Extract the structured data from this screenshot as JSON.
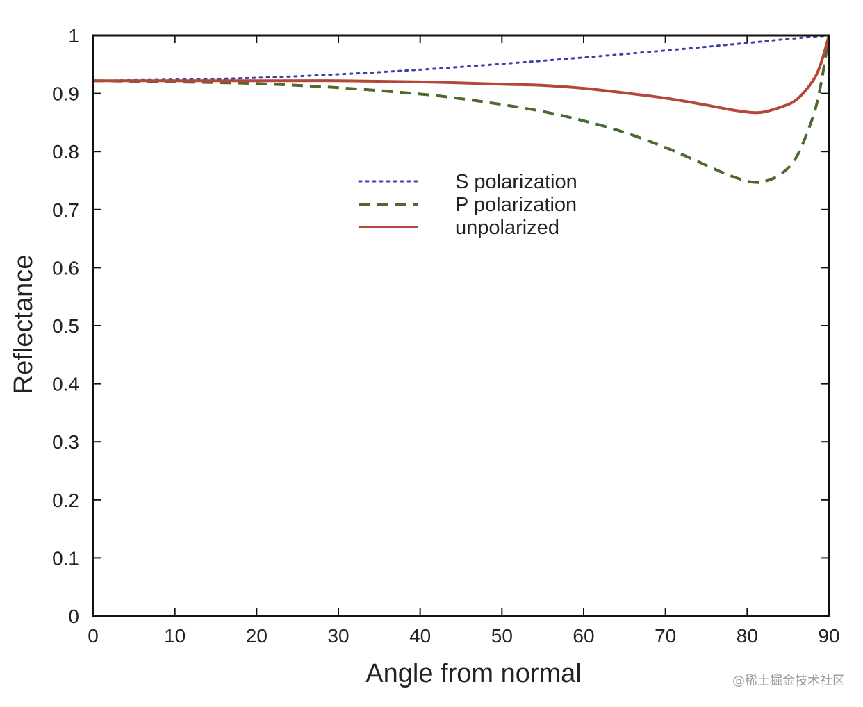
{
  "chart_data": {
    "type": "line",
    "title": "",
    "xlabel": "Angle from normal",
    "ylabel": "Reflectance",
    "xlim": [
      0,
      90
    ],
    "ylim": [
      0,
      1
    ],
    "xticks": [
      0,
      10,
      20,
      30,
      40,
      50,
      60,
      70,
      80,
      90
    ],
    "yticks": [
      0,
      0.1,
      0.2,
      0.3,
      0.4,
      0.5,
      0.6,
      0.7,
      0.8,
      0.9,
      1
    ],
    "ytick_labels": [
      "0",
      "0.1",
      "0.2",
      "0.3",
      "0.4",
      "0.5",
      "0.6",
      "0.7",
      "0.8",
      "0.9",
      "1"
    ],
    "grid": false,
    "legend_position": "upper-center",
    "series": [
      {
        "name": "S polarization",
        "style": "dotted",
        "color": "#3b3fa8",
        "x": [
          0,
          10,
          20,
          30,
          40,
          50,
          60,
          70,
          80,
          85,
          90
        ],
        "y": [
          0.922,
          0.924,
          0.927,
          0.933,
          0.941,
          0.951,
          0.962,
          0.974,
          0.987,
          0.994,
          1.0
        ]
      },
      {
        "name": "P polarization",
        "style": "dashed",
        "color": "#4a6a2f",
        "x": [
          0,
          10,
          20,
          30,
          40,
          45,
          50,
          55,
          60,
          65,
          70,
          73,
          76,
          78,
          80,
          81,
          82,
          84,
          86,
          88,
          89,
          90
        ],
        "y": [
          0.922,
          0.92,
          0.917,
          0.91,
          0.899,
          0.891,
          0.881,
          0.869,
          0.853,
          0.833,
          0.807,
          0.789,
          0.77,
          0.758,
          0.749,
          0.747,
          0.748,
          0.76,
          0.79,
          0.858,
          0.915,
          1.0
        ]
      },
      {
        "name": "unpolarized",
        "style": "solid",
        "color": "#b5463a",
        "x": [
          0,
          10,
          20,
          30,
          40,
          50,
          55,
          60,
          65,
          70,
          75,
          78,
          80,
          81,
          82,
          84,
          86,
          88,
          89,
          90
        ],
        "y": [
          0.922,
          0.922,
          0.922,
          0.922,
          0.92,
          0.916,
          0.914,
          0.909,
          0.901,
          0.892,
          0.88,
          0.872,
          0.868,
          0.867,
          0.868,
          0.876,
          0.889,
          0.921,
          0.951,
          1.0
        ]
      }
    ]
  },
  "watermark": "@稀土掘金技术社区"
}
